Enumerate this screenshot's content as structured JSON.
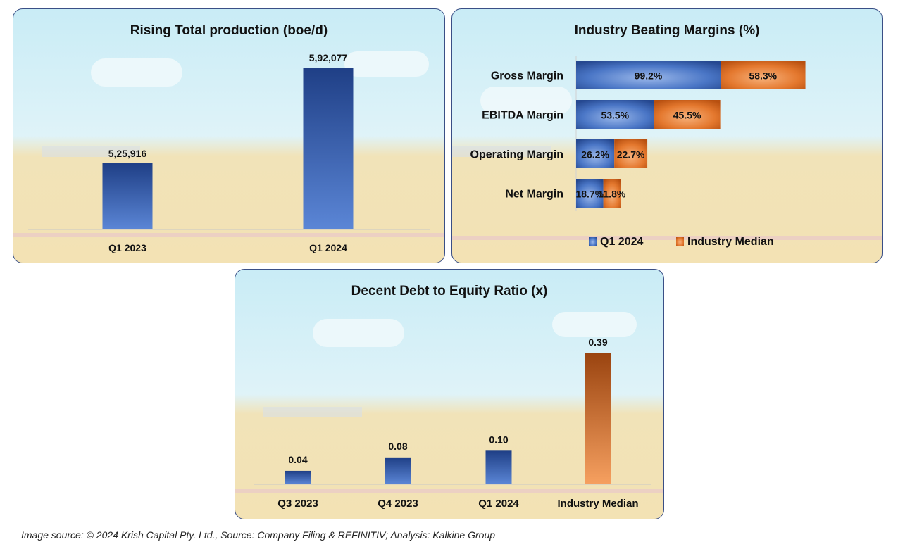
{
  "colors": {
    "blue": "#2f55a4",
    "blue_light": "#5b86d6",
    "orange": "#d9651e",
    "orange_light": "#f5a66a",
    "brown": "#a2480f"
  },
  "chart_data": [
    {
      "type": "bar",
      "title": "Rising Total production (boe/d)",
      "categories": [
        "Q1 2023",
        "Q1 2024"
      ],
      "values": [
        525916,
        592077
      ],
      "labels": [
        "5,25,916",
        "5,92,077"
      ],
      "ylim": [
        480000,
        600000
      ],
      "xlabel": "",
      "ylabel": ""
    },
    {
      "type": "bar",
      "orientation": "horizontal",
      "stacked": true,
      "title": "Industry Beating Margins (%)",
      "categories": [
        "Gross Margin",
        "EBITDA Margin",
        "Operating Margin",
        "Net Margin"
      ],
      "series": [
        {
          "name": "Q1 2024",
          "values": [
            99.2,
            53.5,
            26.2,
            18.7
          ],
          "labels": [
            "99.2%",
            "53.5%",
            "26.2%",
            "18.7%"
          ]
        },
        {
          "name": "Industry Median",
          "values": [
            58.3,
            45.5,
            22.7,
            11.8
          ],
          "labels": [
            "58.3%",
            "45.5%",
            "22.7%",
            "11.8%"
          ]
        }
      ],
      "legend": "bottom"
    },
    {
      "type": "bar",
      "title": "Decent Debt to Equity Ratio (x)",
      "categories": [
        "Q3 2023",
        "Q4 2023",
        "Q1 2024",
        "Industry Median"
      ],
      "values": [
        0.04,
        0.08,
        0.1,
        0.39
      ],
      "labels": [
        "0.04",
        "0.08",
        "0.10",
        "0.39"
      ],
      "ylim": [
        0,
        0.39
      ]
    }
  ],
  "footer": "Image source: © 2024 Krish Capital Pty. Ltd., Source: Company Filing & REFINITIV; Analysis: Kalkine Group"
}
